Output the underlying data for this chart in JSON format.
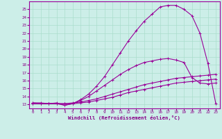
{
  "xlabel": "Windchill (Refroidissement éolien,°C)",
  "xlim": [
    -0.5,
    23.5
  ],
  "ylim": [
    12.5,
    26.0
  ],
  "xticks": [
    0,
    1,
    2,
    3,
    4,
    5,
    6,
    7,
    8,
    9,
    10,
    11,
    12,
    13,
    14,
    15,
    16,
    17,
    18,
    19,
    20,
    21,
    22,
    23
  ],
  "yticks": [
    13,
    14,
    15,
    16,
    17,
    18,
    19,
    20,
    21,
    22,
    23,
    24,
    25
  ],
  "background_color": "#cceee8",
  "grid_color": "#aaddcc",
  "line_color": "#990099",
  "curve1_x": [
    0,
    1,
    2,
    3,
    4,
    5,
    6,
    7,
    8,
    9,
    10,
    11,
    12,
    13,
    14,
    15,
    16,
    17,
    18,
    19,
    20,
    21,
    22,
    23
  ],
  "curve1_y": [
    13.1,
    13.1,
    13.1,
    13.1,
    13.1,
    13.1,
    13.2,
    13.3,
    13.5,
    13.7,
    13.9,
    14.2,
    14.5,
    14.7,
    14.9,
    15.1,
    15.3,
    15.5,
    15.7,
    15.8,
    15.9,
    16.0,
    16.1,
    16.2
  ],
  "curve2_x": [
    0,
    1,
    2,
    3,
    4,
    5,
    6,
    7,
    8,
    9,
    10,
    11,
    12,
    13,
    14,
    15,
    16,
    17,
    18,
    19,
    20,
    21,
    22,
    23
  ],
  "curve2_y": [
    13.1,
    13.1,
    13.1,
    13.1,
    13.1,
    13.2,
    13.3,
    13.5,
    13.7,
    14.0,
    14.3,
    14.6,
    14.9,
    15.2,
    15.5,
    15.7,
    15.9,
    16.1,
    16.3,
    16.4,
    16.5,
    16.6,
    16.7,
    16.8
  ],
  "curve3_x": [
    0,
    1,
    2,
    3,
    4,
    5,
    6,
    7,
    8,
    9,
    10,
    11,
    12,
    13,
    14,
    15,
    16,
    17,
    18,
    19,
    20,
    21,
    22,
    23
  ],
  "curve3_y": [
    13.2,
    13.1,
    13.1,
    13.1,
    12.9,
    13.1,
    13.5,
    14.0,
    14.7,
    15.4,
    16.1,
    16.8,
    17.4,
    17.9,
    18.3,
    18.5,
    18.7,
    18.8,
    18.6,
    18.3,
    16.4,
    15.7,
    15.6,
    15.7
  ],
  "curve4_x": [
    0,
    1,
    2,
    3,
    4,
    5,
    6,
    7,
    8,
    9,
    10,
    11,
    12,
    13,
    14,
    15,
    16,
    17,
    18,
    19,
    20,
    21,
    22,
    23
  ],
  "curve4_y": [
    13.2,
    13.2,
    13.1,
    13.2,
    12.9,
    13.1,
    13.6,
    14.3,
    15.3,
    16.5,
    18.0,
    19.5,
    21.0,
    22.3,
    23.5,
    24.4,
    25.3,
    25.5,
    25.5,
    25.0,
    24.2,
    22.0,
    18.2,
    13.1
  ],
  "font_color": "#880088"
}
